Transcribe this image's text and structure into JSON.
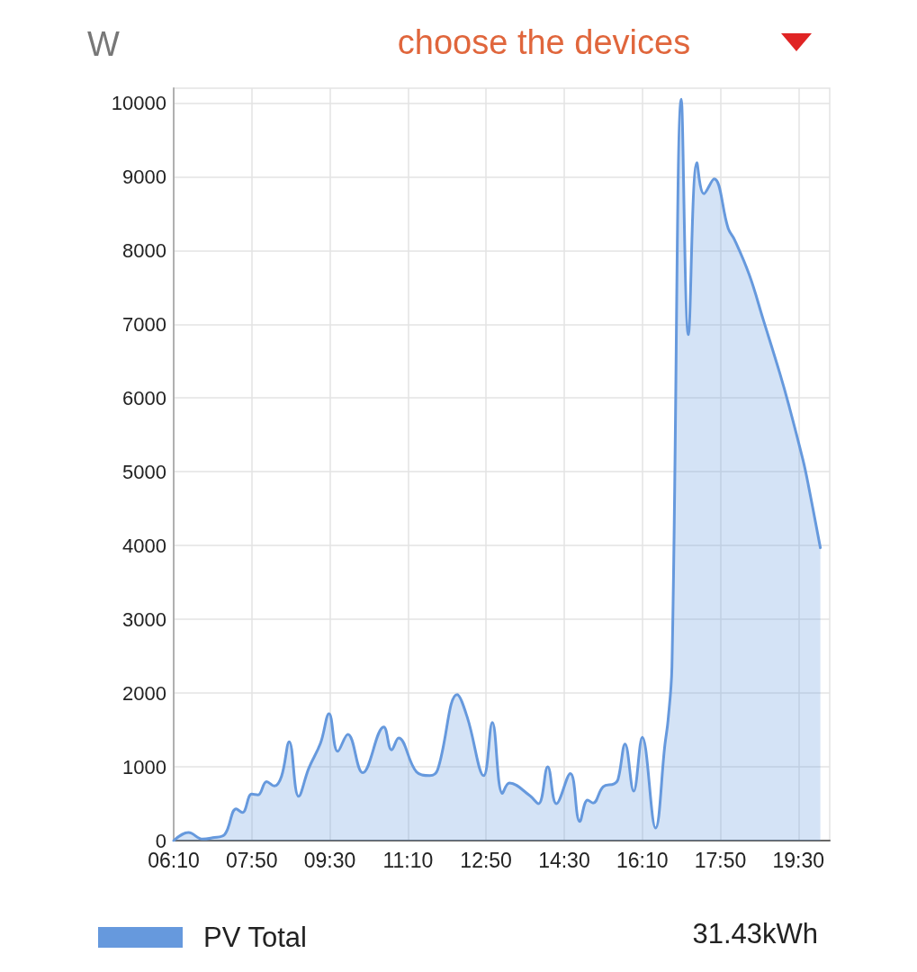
{
  "chart_data": {
    "type": "area",
    "title": "choose the devices",
    "ylabel": "W",
    "x": [
      6.167,
      6.483,
      6.783,
      7.0,
      7.25,
      7.5,
      7.633,
      7.833,
      7.967,
      8.15,
      8.317,
      8.467,
      8.633,
      8.833,
      9.05,
      9.3,
      9.483,
      9.667,
      9.883,
      10.2,
      10.65,
      10.817,
      10.967,
      11.35,
      11.633,
      11.8,
      12.217,
      12.433,
      12.783,
      12.967,
      13.183,
      13.333,
      13.767,
      13.95,
      14.15,
      14.333,
      14.633,
      14.833,
      15.0,
      15.117,
      15.333,
      15.567,
      15.65,
      15.8,
      15.983,
      16.167,
      16.45,
      16.65,
      16.717,
      16.8,
      17.0,
      17.15,
      17.333,
      17.483,
      17.7,
      18.0,
      18.133,
      18.45,
      18.75,
      19.1,
      19.3,
      19.6,
      19.717,
      19.967
    ],
    "series": [
      {
        "name": "PV Total",
        "color": "#6699dd",
        "values": [
          0,
          110,
          20,
          40,
          80,
          430,
          380,
          630,
          620,
          800,
          740,
          870,
          1340,
          600,
          980,
          1320,
          1720,
          1210,
          1440,
          920,
          1540,
          1230,
          1390,
          930,
          880,
          960,
          1980,
          1670,
          880,
          1600,
          640,
          780,
          610,
          500,
          1000,
          500,
          910,
          260,
          550,
          510,
          730,
          770,
          830,
          1310,
          670,
          1400,
          170,
          1300,
          1630,
          2360,
          10050,
          6860,
          9190,
          8770,
          8970,
          8300,
          8150,
          7670,
          7060,
          6340,
          5890,
          5150,
          4800,
          3970
        ]
      }
    ],
    "xlim": [
      6.1667,
      20.1667
    ],
    "xticks": [
      {
        "value": 6.1667,
        "label": "06:10"
      },
      {
        "value": 7.8333,
        "label": "07:50"
      },
      {
        "value": 9.5,
        "label": "09:30"
      },
      {
        "value": 11.1667,
        "label": "11:10"
      },
      {
        "value": 12.8333,
        "label": "12:50"
      },
      {
        "value": 14.5,
        "label": "14:30"
      },
      {
        "value": 16.1667,
        "label": "16:10"
      },
      {
        "value": 17.8333,
        "label": "17:50"
      },
      {
        "value": 19.5,
        "label": "19:30"
      }
    ],
    "ylim": [
      0,
      10200
    ],
    "yticks": [
      0,
      1000,
      2000,
      3000,
      4000,
      5000,
      6000,
      7000,
      8000,
      9000,
      10000
    ],
    "grid": true,
    "legend": "bottom left",
    "marker": "none",
    "annotations": [
      "31.43kWh"
    ]
  }
}
